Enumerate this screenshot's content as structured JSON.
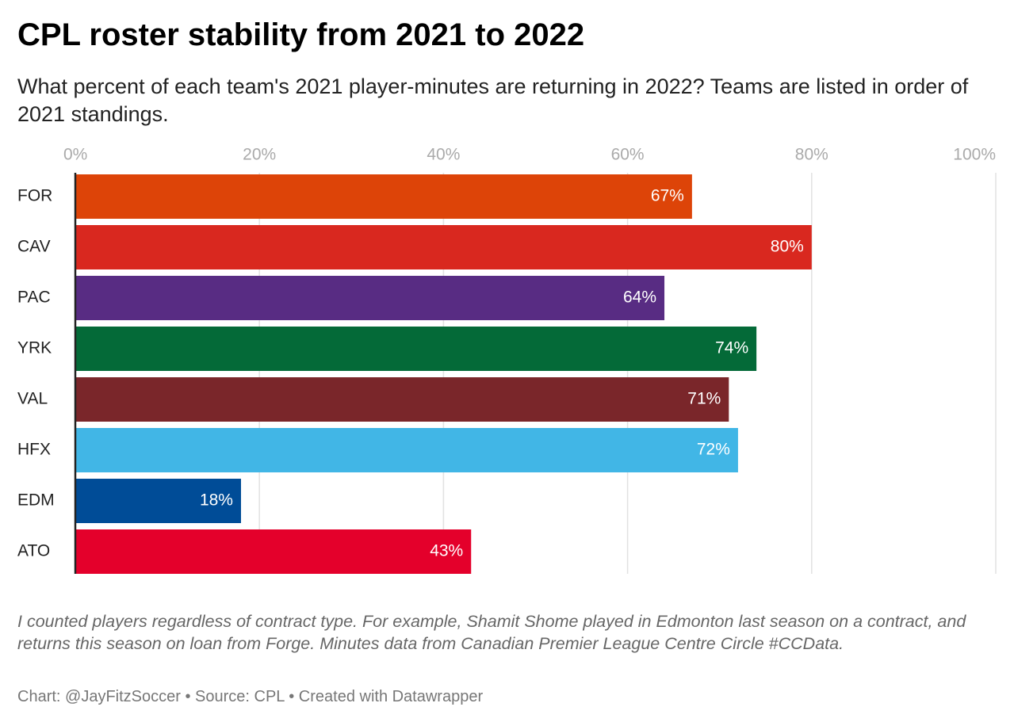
{
  "chart_data": {
    "type": "bar",
    "orientation": "horizontal",
    "title": "CPL roster stability from 2021 to 2022",
    "subtitle": "What percent of each team's 2021 player-minutes are returning in 2022? Teams are listed in order of 2021 standings.",
    "categories": [
      "FOR",
      "CAV",
      "PAC",
      "YRK",
      "VAL",
      "HFX",
      "EDM",
      "ATO"
    ],
    "values": [
      67,
      80,
      64,
      74,
      71,
      72,
      18,
      43
    ],
    "value_labels": [
      "67%",
      "80%",
      "64%",
      "74%",
      "71%",
      "72%",
      "18%",
      "43%"
    ],
    "colors": [
      "#dd4408",
      "#d9281f",
      "#582c83",
      "#046a38",
      "#7a262a",
      "#41b6e6",
      "#004c97",
      "#e4002b"
    ],
    "xlim": [
      0,
      100
    ],
    "xticks": [
      {
        "value": 0,
        "label": "0%"
      },
      {
        "value": 20,
        "label": "20%"
      },
      {
        "value": 40,
        "label": "40%"
      },
      {
        "value": 60,
        "label": "60%"
      },
      {
        "value": 80,
        "label": "80%"
      },
      {
        "value": 100,
        "label": "100%"
      }
    ],
    "grid": true,
    "note": "I counted players regardless of contract type. For example, Shamit Shome played in Edmonton last season on a contract, and returns this season on loan from Forge. Minutes data from Canadian Premier League Centre Circle #CCData.",
    "source": "Chart: @JayFitzSoccer • Source: CPL • Created with Datawrapper"
  }
}
